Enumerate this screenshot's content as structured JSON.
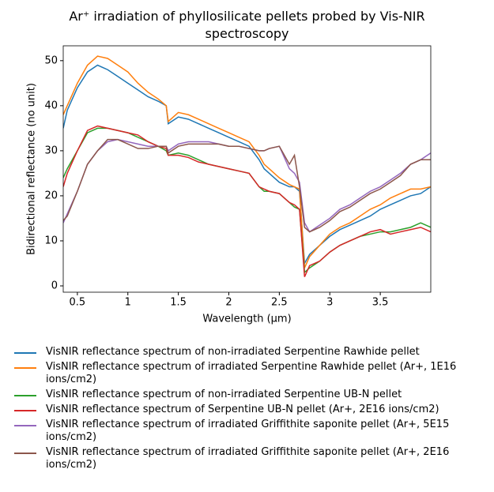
{
  "chart_data": {
    "type": "line",
    "title": "Ar⁺ irradiation of phyllosilicate pellets probed by Vis-NIR spectroscopy",
    "xlabel": "Wavelength (μm)",
    "ylabel": "Bidirectional reflectance (no unit)",
    "x": [
      0.36,
      0.4,
      0.5,
      0.6,
      0.7,
      0.8,
      0.9,
      1.0,
      1.1,
      1.2,
      1.3,
      1.38,
      1.4,
      1.5,
      1.6,
      1.7,
      1.8,
      1.9,
      2.0,
      2.1,
      2.2,
      2.3,
      2.35,
      2.4,
      2.5,
      2.6,
      2.65,
      2.7,
      2.75,
      2.8,
      2.9,
      3.0,
      3.1,
      3.2,
      3.3,
      3.4,
      3.5,
      3.6,
      3.7,
      3.8,
      3.9,
      4.0
    ],
    "series": [
      {
        "name": "VisNIR reflectance spectrum of non-irradiated Serpentine Rawhide pellet",
        "color": "#1f77b4",
        "values": [
          35,
          39,
          44,
          47.5,
          49,
          48,
          46.5,
          45,
          43.5,
          42,
          41,
          40,
          36,
          37.5,
          37,
          36,
          35,
          34,
          33,
          32,
          31,
          28,
          26,
          25,
          23,
          22,
          22,
          21,
          5,
          7,
          9,
          11,
          12.5,
          13.5,
          14.5,
          15.5,
          17,
          18,
          19,
          20,
          20.5,
          22
        ]
      },
      {
        "name": "VisNIR reflectance spectrum of irradiated Serpentine Rawhide pellet (Ar+, 1E16 ions/cm2)",
        "color": "#ff7f0e",
        "values": [
          38,
          40,
          45,
          49,
          51,
          50.5,
          49,
          47.5,
          45,
          43,
          41.5,
          40,
          36.5,
          38.5,
          38,
          37,
          36,
          35,
          34,
          33,
          32,
          29,
          27,
          26,
          24,
          22.5,
          22,
          21.5,
          4,
          6.5,
          9,
          11.5,
          13,
          14,
          15.5,
          17,
          18,
          19.5,
          20.5,
          21.5,
          21.5,
          22
        ]
      },
      {
        "name": "VisNIR reflectance spectrum of non-irradiated Serpentine UB-N pellet",
        "color": "#2ca02c",
        "values": [
          24,
          26,
          30,
          34,
          35,
          35,
          34.5,
          34,
          33,
          32,
          31,
          30,
          29,
          29.5,
          29,
          28,
          27,
          26.5,
          26,
          25.5,
          25,
          22,
          21,
          21,
          20.5,
          18.5,
          17.5,
          17,
          3,
          4,
          5.5,
          7.5,
          9,
          10,
          11,
          11.5,
          12,
          12,
          12.5,
          13,
          14,
          13
        ]
      },
      {
        "name": "VisNIR reflectance spectrum of Serpentine UB-N pellet (Ar+, 2E16 ions/cm2)",
        "color": "#d62728",
        "values": [
          22,
          25,
          30,
          34.5,
          35.5,
          35,
          34.5,
          34,
          33.5,
          32,
          31,
          30.5,
          29,
          29,
          28.5,
          27.5,
          27,
          26.5,
          26,
          25.5,
          25,
          22,
          21.5,
          21,
          20.5,
          18.5,
          18,
          17,
          2,
          4.5,
          5.5,
          7.5,
          9,
          10,
          11,
          12,
          12.5,
          11.5,
          12,
          12.5,
          13,
          12
        ]
      },
      {
        "name": "VisNIR reflectance spectrum of irradiated Griffithite saponite pellet (Ar+, 5E15 ions/cm2)",
        "color": "#9467bd",
        "values": [
          14,
          16,
          21,
          27,
          30,
          32,
          32.5,
          32,
          31.5,
          31,
          31,
          31,
          30,
          31.5,
          32,
          32,
          32,
          31.5,
          31,
          31,
          30.5,
          30,
          30,
          30.5,
          31,
          26,
          25,
          23,
          14,
          12,
          13.5,
          15,
          17,
          18,
          19.5,
          21,
          22,
          23.5,
          25,
          27,
          28,
          29.5
        ]
      },
      {
        "name": "VisNIR reflectance spectrum of irradiated Griffithite saponite pellet (Ar+, 2E16 ions/cm2)",
        "color": "#8c564b",
        "values": [
          14.5,
          15.5,
          21,
          27,
          30,
          32.5,
          32.5,
          31.5,
          30.5,
          30.5,
          31,
          31,
          29.5,
          31,
          31.5,
          31.5,
          31.5,
          31.5,
          31,
          31,
          30.5,
          30,
          30,
          30.5,
          31,
          27,
          29,
          22,
          13,
          12,
          13,
          14.5,
          16.5,
          17.5,
          19,
          20.5,
          21.5,
          23,
          24.5,
          27,
          28,
          28
        ]
      }
    ],
    "xlim": [
      0.36,
      4.0
    ],
    "ylim": [
      -1.4,
      53.3
    ],
    "xticks": [
      0.5,
      1.0,
      1.5,
      2.0,
      2.5,
      3.0,
      3.5
    ],
    "yticks": [
      0,
      10,
      20,
      30,
      40,
      50
    ],
    "grid": false
  }
}
